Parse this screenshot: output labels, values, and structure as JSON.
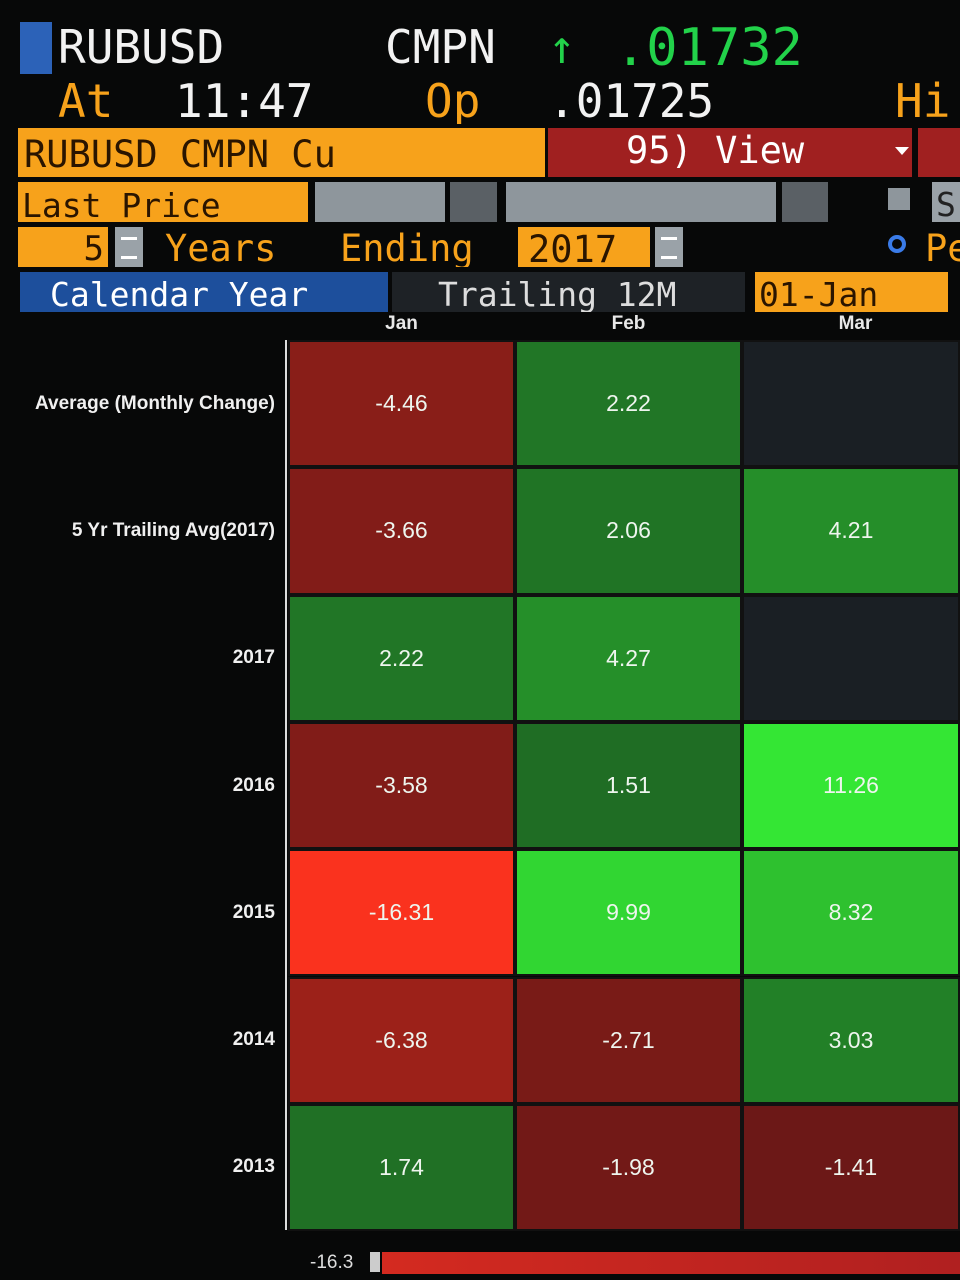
{
  "header": {
    "ticker": "RUBUSD",
    "source": "CMPN",
    "arrow": "↑",
    "last": ".01732",
    "at_label": "At",
    "time": "11:47",
    "open_label": "Op",
    "open": ".01725",
    "high_label": "Hi"
  },
  "toolbar": {
    "security": "RUBUSD CMPN Cu",
    "view": "95) View",
    "field": "Last Price",
    "s_label": "S",
    "years": "5",
    "years_label": "Years",
    "ending_label": "Ending",
    "ending": "2017",
    "period_label": "Pe"
  },
  "tabs": [
    "Calendar Year",
    "Trailing 12M",
    "01-Jan"
  ],
  "heatmap": {
    "columns": [
      "Jan",
      "Feb",
      "Mar"
    ],
    "rows": [
      {
        "label": "Average (Monthly Change)",
        "values": [
          -4.46,
          2.22,
          null
        ]
      },
      {
        "label": "5 Yr Trailing Avg(2017)",
        "values": [
          -3.66,
          2.06,
          4.21
        ]
      },
      {
        "label": "2017",
        "values": [
          2.22,
          4.27,
          null
        ]
      },
      {
        "label": "2016",
        "values": [
          -3.58,
          1.51,
          11.26
        ]
      },
      {
        "label": "2015",
        "values": [
          -16.31,
          9.99,
          8.32
        ]
      },
      {
        "label": "2014",
        "values": [
          -6.38,
          -2.71,
          3.03
        ]
      },
      {
        "label": "2013",
        "values": [
          1.74,
          -1.98,
          -1.41
        ]
      }
    ],
    "scale_min": -16.3
  }
}
